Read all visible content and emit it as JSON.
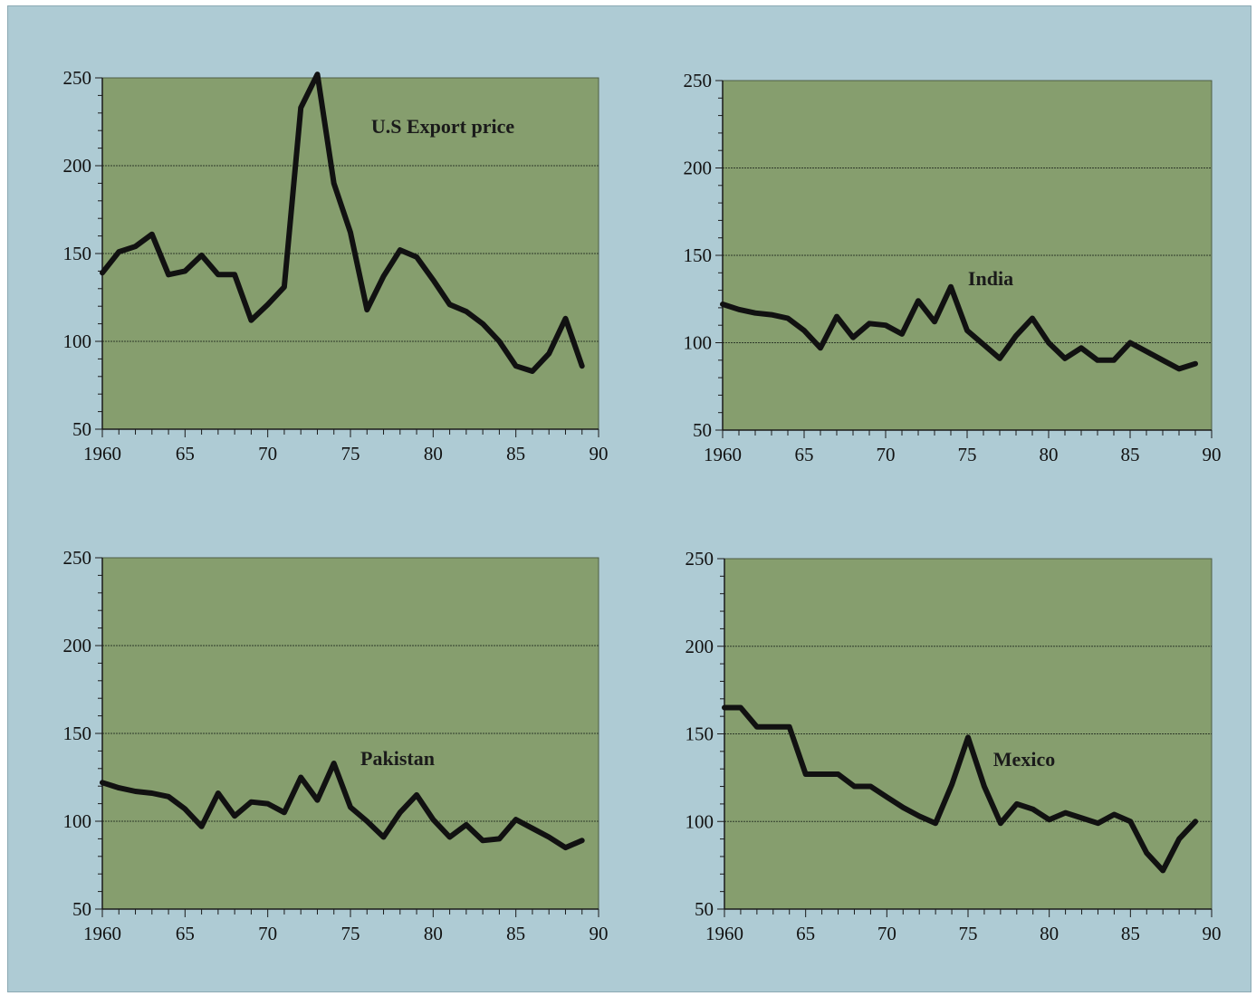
{
  "chart_data": [
    {
      "type": "line",
      "label": "U.S Export price",
      "x": [
        1960,
        1961,
        1962,
        1963,
        1964,
        1965,
        1966,
        1967,
        1968,
        1969,
        1970,
        1971,
        1972,
        1973,
        1974,
        1975,
        1976,
        1977,
        1978,
        1979,
        1980,
        1981,
        1982,
        1983,
        1984,
        1985,
        1986,
        1987,
        1988,
        1989
      ],
      "y": [
        139,
        151,
        154,
        161,
        138,
        140,
        149,
        138,
        138,
        112,
        121,
        131,
        233,
        252,
        190,
        162,
        118,
        137,
        152,
        148,
        135,
        121,
        117,
        110,
        100,
        86,
        83,
        93,
        113,
        86
      ],
      "xticks": [
        "1960",
        "65",
        "70",
        "75",
        "80",
        "85",
        "90"
      ],
      "yticks": [
        "50",
        "100",
        "150",
        "200",
        "250"
      ],
      "xlim": [
        1960,
        1990
      ],
      "ylim": [
        50,
        250
      ],
      "grid": true
    },
    {
      "type": "line",
      "label": "India",
      "x": [
        1960,
        1961,
        1962,
        1963,
        1964,
        1965,
        1966,
        1967,
        1968,
        1969,
        1970,
        1971,
        1972,
        1973,
        1974,
        1975,
        1976,
        1977,
        1978,
        1979,
        1980,
        1981,
        1982,
        1983,
        1984,
        1985,
        1986,
        1987,
        1988,
        1989
      ],
      "y": [
        122,
        119,
        117,
        116,
        114,
        107,
        97,
        115,
        103,
        111,
        110,
        105,
        124,
        112,
        132,
        107,
        99,
        91,
        104,
        114,
        100,
        91,
        97,
        90,
        90,
        100,
        95,
        90,
        85,
        88
      ],
      "xticks": [
        "1960",
        "65",
        "70",
        "75",
        "80",
        "85",
        "90"
      ],
      "yticks": [
        "50",
        "100",
        "150",
        "200",
        "250"
      ],
      "xlim": [
        1960,
        1990
      ],
      "ylim": [
        50,
        250
      ],
      "grid": true
    },
    {
      "type": "line",
      "label": "Pakistan",
      "x": [
        1960,
        1961,
        1962,
        1963,
        1964,
        1965,
        1966,
        1967,
        1968,
        1969,
        1970,
        1971,
        1972,
        1973,
        1974,
        1975,
        1976,
        1977,
        1978,
        1979,
        1980,
        1981,
        1982,
        1983,
        1984,
        1985,
        1986,
        1987,
        1988,
        1989
      ],
      "y": [
        122,
        119,
        117,
        116,
        114,
        107,
        97,
        116,
        103,
        111,
        110,
        105,
        125,
        112,
        133,
        108,
        100,
        91,
        105,
        115,
        101,
        91,
        98,
        89,
        90,
        101,
        96,
        91,
        85,
        89
      ],
      "xticks": [
        "1960",
        "65",
        "70",
        "75",
        "80",
        "85",
        "90"
      ],
      "yticks": [
        "50",
        "100",
        "150",
        "200",
        "250"
      ],
      "xlim": [
        1960,
        1990
      ],
      "ylim": [
        50,
        250
      ],
      "grid": true
    },
    {
      "type": "line",
      "label": "Mexico",
      "x": [
        1960,
        1961,
        1962,
        1963,
        1964,
        1965,
        1966,
        1967,
        1968,
        1969,
        1970,
        1971,
        1972,
        1973,
        1974,
        1975,
        1976,
        1977,
        1978,
        1979,
        1980,
        1981,
        1982,
        1983,
        1984,
        1985,
        1986,
        1987,
        1988,
        1989
      ],
      "y": [
        165,
        165,
        154,
        154,
        154,
        127,
        127,
        127,
        120,
        120,
        114,
        108,
        103,
        99,
        121,
        148,
        120,
        99,
        110,
        107,
        101,
        105,
        102,
        99,
        104,
        100,
        82,
        72,
        90,
        100
      ],
      "xticks": [
        "1960",
        "65",
        "70",
        "75",
        "80",
        "85",
        "90"
      ],
      "yticks": [
        "50",
        "100",
        "150",
        "200",
        "250"
      ],
      "xlim": [
        1960,
        1990
      ],
      "ylim": [
        50,
        250
      ],
      "grid": true
    }
  ]
}
